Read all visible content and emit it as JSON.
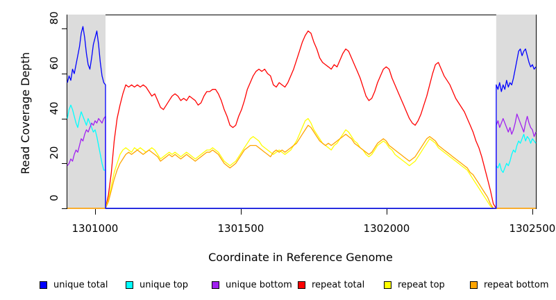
{
  "chart_data": {
    "type": "line",
    "title": "",
    "xlabel": "Coordinate in Reference Genome",
    "ylabel": "Read Coverage Depth",
    "xlim": [
      1300905,
      1302512
    ],
    "ylim": [
      0,
      86
    ],
    "x_ticks": [
      1301000,
      1301500,
      1302000,
      1302500
    ],
    "x_tick_labels": [
      "1301000",
      "1301500",
      "1302000",
      "1302500"
    ],
    "y_ticks": [
      0,
      20,
      40,
      60,
      80
    ],
    "grid": false,
    "legend_position": "bottom",
    "shaded_regions": [
      {
        "name": "left-flank",
        "x0": 1300905,
        "x1": 1301036,
        "color": "#dcdcdc"
      },
      {
        "name": "right-flank",
        "x0": 1302376,
        "x1": 1302512,
        "color": "#dcdcdc"
      }
    ],
    "series": [
      {
        "name": "repeat total",
        "color": "#FF0000",
        "segments": [
          {
            "x0": 1300905,
            "x1": 1301036,
            "v": [
              0,
              0
            ]
          },
          {
            "x0": 1301036,
            "x1": 1302376,
            "v": [
              0,
              6,
              16,
              30,
              40,
              46,
              51,
              55,
              54,
              55,
              54,
              55,
              54,
              55,
              54,
              52,
              50,
              51,
              48,
              45,
              44,
              46,
              48,
              50,
              51,
              50,
              48,
              49,
              48,
              50,
              49,
              48,
              46,
              47,
              50,
              52,
              52,
              53,
              53,
              51,
              48,
              44,
              41,
              37,
              36,
              37,
              41,
              44,
              48,
              53,
              56,
              59,
              61,
              62,
              61,
              62,
              60,
              59,
              55,
              54,
              56,
              55,
              54,
              56,
              59,
              62,
              66,
              70,
              74,
              77,
              79,
              78,
              74,
              71,
              67,
              65,
              64,
              63,
              62,
              64,
              63,
              66,
              69,
              71,
              70,
              67,
              64,
              61,
              58,
              54,
              50,
              48,
              49,
              52,
              56,
              59,
              62,
              63,
              62,
              58,
              55,
              52,
              49,
              46,
              43,
              40,
              38,
              37,
              39,
              42,
              46,
              50,
              55,
              60,
              64,
              65,
              62,
              59,
              57,
              55,
              52,
              49,
              47,
              45,
              43,
              40,
              37,
              34,
              30,
              27,
              23,
              18,
              13,
              8,
              2,
              0
            ]
          },
          {
            "x0": 1302376,
            "x1": 1302512,
            "v": [
              0,
              0
            ]
          }
        ]
      },
      {
        "name": "repeat top",
        "color": "#FFFF00",
        "segments": [
          {
            "x0": 1300905,
            "x1": 1301036,
            "v": [
              0,
              0
            ]
          },
          {
            "x0": 1301036,
            "x1": 1302376,
            "v": [
              0,
              4,
              10,
              16,
              20,
              24,
              26,
              27,
              26,
              25,
              27,
              26,
              27,
              26,
              25,
              26,
              27,
              26,
              24,
              22,
              23,
              24,
              25,
              24,
              25,
              24,
              23,
              24,
              25,
              24,
              23,
              22,
              23,
              24,
              25,
              26,
              26,
              27,
              26,
              25,
              23,
              21,
              20,
              19,
              20,
              21,
              23,
              25,
              27,
              29,
              31,
              32,
              31,
              30,
              28,
              27,
              26,
              25,
              24,
              25,
              26,
              25,
              24,
              25,
              26,
              28,
              30,
              33,
              36,
              39,
              40,
              38,
              35,
              33,
              31,
              29,
              28,
              27,
              26,
              28,
              29,
              31,
              33,
              35,
              34,
              32,
              30,
              29,
              27,
              26,
              24,
              23,
              24,
              26,
              28,
              29,
              30,
              29,
              27,
              26,
              24,
              23,
              22,
              21,
              20,
              19,
              20,
              21,
              23,
              25,
              27,
              29,
              31,
              30,
              29,
              27,
              26,
              25,
              24,
              23,
              22,
              21,
              20,
              19,
              18,
              17,
              15,
              13,
              11,
              9,
              7,
              5,
              3,
              1,
              0,
              0
            ]
          },
          {
            "x0": 1302376,
            "x1": 1302512,
            "v": [
              0,
              0
            ]
          }
        ]
      },
      {
        "name": "repeat bottom",
        "color": "#FFA500",
        "segments": [
          {
            "x0": 1300905,
            "x1": 1301036,
            "v": [
              0,
              0
            ]
          },
          {
            "x0": 1301036,
            "x1": 1302376,
            "v": [
              0,
              3,
              8,
              13,
              17,
              20,
              22,
              24,
              25,
              24,
              25,
              26,
              25,
              24,
              25,
              26,
              25,
              24,
              23,
              21,
              22,
              23,
              24,
              23,
              24,
              23,
              22,
              23,
              24,
              23,
              22,
              21,
              22,
              23,
              24,
              25,
              25,
              26,
              25,
              24,
              22,
              20,
              19,
              18,
              19,
              20,
              22,
              24,
              26,
              27,
              28,
              28,
              28,
              27,
              26,
              25,
              24,
              23,
              25,
              26,
              25,
              26,
              25,
              26,
              27,
              28,
              29,
              31,
              33,
              35,
              37,
              36,
              34,
              32,
              30,
              29,
              28,
              29,
              28,
              29,
              30,
              31,
              32,
              33,
              32,
              31,
              29,
              28,
              27,
              26,
              25,
              24,
              25,
              27,
              29,
              30,
              31,
              30,
              28,
              27,
              26,
              25,
              24,
              23,
              22,
              21,
              22,
              23,
              25,
              27,
              29,
              31,
              32,
              31,
              30,
              28,
              27,
              26,
              25,
              24,
              23,
              22,
              21,
              20,
              19,
              18,
              16,
              15,
              13,
              11,
              9,
              7,
              5,
              2,
              0,
              0
            ]
          },
          {
            "x0": 1302376,
            "x1": 1302512,
            "v": [
              0,
              0
            ]
          }
        ]
      },
      {
        "name": "unique top",
        "color": "#00FFFF",
        "segments": [
          {
            "x0": 1300905,
            "x1": 1301036,
            "v": [
              40,
              44,
              46,
              44,
              41,
              38,
              36,
              40,
              43,
              41,
              39,
              37,
              40,
              38,
              36,
              34,
              35,
              32,
              28,
              24,
              20,
              17,
              17
            ]
          },
          {
            "x0": 1301036,
            "x1": 1302376,
            "v": [
              0,
              0
            ]
          },
          {
            "x0": 1302376,
            "x1": 1302512,
            "v": [
              19,
              18,
              20,
              17,
              16,
              18,
              20,
              19,
              21,
              24,
              26,
              25,
              28,
              30,
              29,
              31,
              33,
              30,
              32,
              31,
              29,
              31,
              30,
              29
            ]
          }
        ]
      },
      {
        "name": "unique bottom",
        "color": "#A020F0",
        "segments": [
          {
            "x0": 1300905,
            "x1": 1301036,
            "v": [
              19,
              20,
              22,
              21,
              24,
              26,
              25,
              28,
              31,
              30,
              33,
              35,
              34,
              36,
              38,
              37,
              39,
              38,
              40,
              39,
              38,
              40,
              41
            ]
          },
          {
            "x0": 1301036,
            "x1": 1302376,
            "v": [
              0,
              0
            ]
          },
          {
            "x0": 1302376,
            "x1": 1302512,
            "v": [
              37,
              39,
              36,
              38,
              40,
              38,
              36,
              34,
              36,
              33,
              35,
              38,
              42,
              40,
              38,
              36,
              34,
              38,
              41,
              38,
              36,
              35,
              32,
              34
            ]
          }
        ]
      },
      {
        "name": "unique total",
        "color": "#0000FF",
        "segments": [
          {
            "x0": 1300905,
            "x1": 1301036,
            "v": [
              56,
              59,
              57,
              62,
              60,
              64,
              68,
              72,
              78,
              81,
              76,
              69,
              64,
              62,
              67,
              73,
              76,
              79,
              73,
              65,
              59,
              56,
              55
            ]
          },
          {
            "x0": 1301036,
            "x1": 1302376,
            "v": [
              0,
              0
            ]
          },
          {
            "x0": 1302376,
            "x1": 1302512,
            "v": [
              55,
              53,
              56,
              52,
              55,
              53,
              57,
              54,
              56,
              55,
              58,
              62,
              66,
              70,
              71,
              68,
              70,
              71,
              68,
              65,
              63,
              64,
              62,
              63
            ]
          }
        ]
      }
    ]
  },
  "legend": {
    "items": [
      {
        "label": "unique total",
        "color": "#0000FF"
      },
      {
        "label": "unique top",
        "color": "#00FFFF"
      },
      {
        "label": "unique bottom",
        "color": "#A020F0"
      },
      {
        "label": "repeat total",
        "color": "#FF0000"
      },
      {
        "label": "repeat top",
        "color": "#FFFF00"
      },
      {
        "label": "repeat bottom",
        "color": "#FFA500"
      }
    ]
  }
}
